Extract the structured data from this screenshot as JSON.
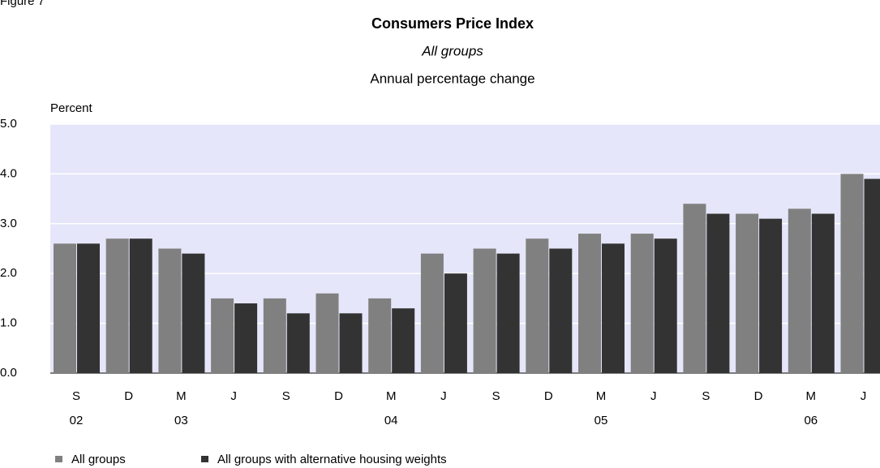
{
  "figure_label": "Figure 7",
  "chart_data": {
    "type": "bar",
    "title": "Consumers Price Index",
    "subtitle": "All groups",
    "subtitle2": "Annual percentage change",
    "y_label": "Percent",
    "categories": [
      "S",
      "D",
      "M",
      "J",
      "S",
      "D",
      "M",
      "J",
      "S",
      "D",
      "M",
      "J",
      "S",
      "D",
      "M",
      "J"
    ],
    "category_years": [
      "02",
      null,
      "03",
      null,
      null,
      null,
      "04",
      null,
      null,
      null,
      "05",
      null,
      null,
      null,
      "06",
      null
    ],
    "series": [
      {
        "name": "All groups",
        "color": "#808080",
        "values": [
          2.6,
          2.7,
          2.5,
          1.5,
          1.5,
          1.6,
          1.5,
          2.4,
          2.5,
          2.7,
          2.8,
          2.8,
          3.4,
          3.2,
          3.3,
          4.0
        ]
      },
      {
        "name": "All groups with alternative housing weights",
        "color": "#333333",
        "values": [
          2.6,
          2.7,
          2.4,
          1.4,
          1.2,
          1.2,
          1.3,
          2.0,
          2.4,
          2.5,
          2.6,
          2.7,
          3.2,
          3.1,
          3.2,
          3.9
        ]
      }
    ],
    "ylim": [
      0,
      5
    ],
    "yticks": [
      {
        "value": 0,
        "label": "0.0"
      },
      {
        "value": 1,
        "label": "1.0"
      },
      {
        "value": 2,
        "label": "2.0"
      },
      {
        "value": 3,
        "label": "3.0"
      },
      {
        "value": 4,
        "label": "4.0"
      },
      {
        "value": 5,
        "label": "5.0"
      }
    ],
    "grid": true,
    "plot_background": "#e6e6fa",
    "grid_color": "#ffffff",
    "legend_position": "bottom-left"
  }
}
